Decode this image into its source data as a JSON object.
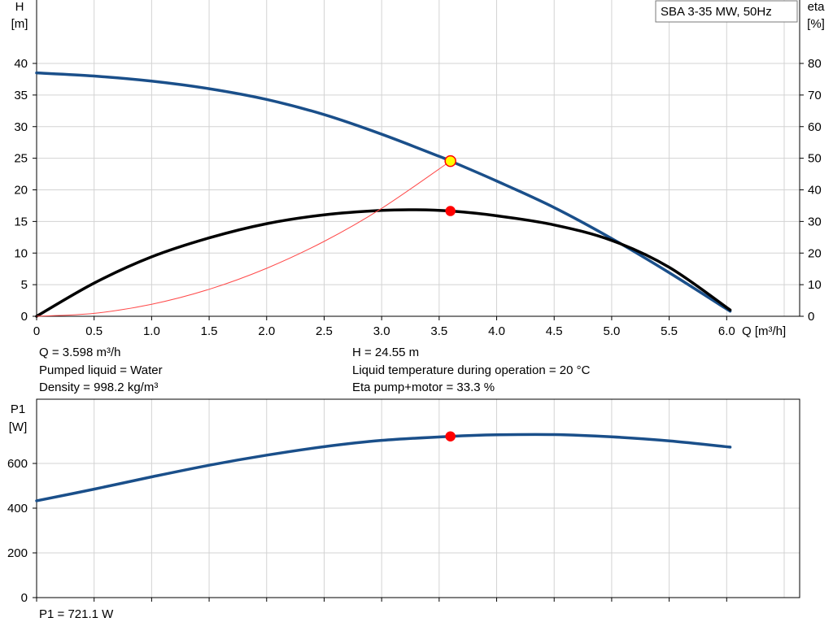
{
  "legend_label": "SBA 3-35 MW, 50Hz",
  "info": {
    "q": "Q = 3.598 m³/h",
    "h": "H = 24.55 m",
    "liquid": "Pumped liquid = Water",
    "temperature": "Liquid temperature during operation = 20 °C",
    "density": "Density = 998.2 kg/m³",
    "eta": "Eta pump+motor = 33.3 %",
    "p1": "P1 = 721.1 W"
  },
  "colors": {
    "head_curve": "#1a4f8a",
    "eta_curve": "#000000",
    "system_curve": "#ff4a4a",
    "p1_curve": "#1a4f8a",
    "duty_point_head": "#ffff00",
    "duty_point_red": "#ff0000",
    "grid": "#d3d3d3"
  },
  "chart_data": [
    {
      "type": "line",
      "x_label": "Q [m³/h]",
      "y_label": "H\n[m]",
      "y2_label": "eta\n[%]",
      "xlim": [
        0,
        6.5
      ],
      "ylim": [
        0,
        45
      ],
      "y2lim": [
        0,
        90
      ],
      "x_ticks": [
        0,
        0.5,
        1.0,
        1.5,
        2.0,
        2.5,
        3.0,
        3.5,
        4.0,
        4.5,
        5.0,
        5.5,
        6.0
      ],
      "x_tick_labels": [
        "0",
        "0.5",
        "1.0",
        "1.5",
        "2.0",
        "2.5",
        "3.0",
        "3.5",
        "4.0",
        "4.5",
        "5.0",
        "5.5",
        "6.0"
      ],
      "y_ticks": [
        0,
        5,
        10,
        15,
        20,
        25,
        30,
        35,
        40
      ],
      "y2_ticks": [
        0,
        10,
        20,
        30,
        40,
        50,
        60,
        70,
        80
      ],
      "grid": true,
      "series": [
        {
          "axis": "left",
          "color": "#1a4f8a",
          "style": "thick",
          "x": [
            0,
            0.5,
            1.0,
            1.5,
            2.0,
            2.5,
            3.0,
            3.5,
            3.6,
            4.0,
            4.5,
            5.0,
            5.5,
            6.03
          ],
          "y": [
            38.5,
            38.0,
            37.2,
            36.0,
            34.3,
            31.9,
            28.8,
            25.3,
            24.55,
            21.4,
            17.2,
            12.3,
            6.9,
            0.8
          ]
        },
        {
          "axis": "right",
          "color": "#000000",
          "style": "thick",
          "x": [
            0,
            0.5,
            1.0,
            1.5,
            2.0,
            2.5,
            3.0,
            3.3,
            3.6,
            4.0,
            4.5,
            5.0,
            5.5,
            6.03
          ],
          "y": [
            0,
            10.5,
            18.8,
            24.8,
            29.3,
            32.1,
            33.5,
            33.7,
            33.3,
            31.8,
            28.9,
            24.0,
            15.5,
            2.0
          ]
        },
        {
          "axis": "left",
          "color": "#ff4a4a",
          "style": "thin",
          "x": [
            0,
            0.5,
            1.0,
            1.5,
            2.0,
            2.5,
            3.0,
            3.598
          ],
          "y": [
            0,
            0.47,
            1.9,
            4.27,
            7.59,
            11.85,
            17.07,
            24.55
          ]
        }
      ],
      "points": [
        {
          "x": 3.598,
          "y": 24.55,
          "axis": "left",
          "color": "#ffff00",
          "stroke": "#ff0000"
        },
        {
          "x": 3.598,
          "y": 33.3,
          "axis": "right",
          "color": "#ff0000",
          "stroke": "#ff0000"
        }
      ]
    },
    {
      "type": "line",
      "y_label": "P1\n[W]",
      "xlim": [
        0,
        6.5
      ],
      "ylim": [
        0,
        800
      ],
      "x_ticks": [
        0,
        0.5,
        1.0,
        1.5,
        2.0,
        2.5,
        3.0,
        3.5,
        4.0,
        4.5,
        5.0,
        5.5,
        6.0
      ],
      "y_ticks": [
        0,
        200,
        400,
        600
      ],
      "grid": true,
      "series": [
        {
          "axis": "left",
          "color": "#1a4f8a",
          "style": "thick",
          "x": [
            0,
            0.5,
            1.0,
            1.5,
            2.0,
            2.5,
            3.0,
            3.598,
            4.0,
            4.5,
            5.0,
            5.5,
            6.03
          ],
          "y": [
            433,
            485,
            540,
            592,
            637,
            675,
            703,
            721.1,
            728,
            729,
            719,
            701,
            673
          ]
        }
      ],
      "points": [
        {
          "x": 3.598,
          "y": 721.1,
          "axis": "left",
          "color": "#ff0000",
          "stroke": "#ff0000"
        }
      ]
    }
  ]
}
